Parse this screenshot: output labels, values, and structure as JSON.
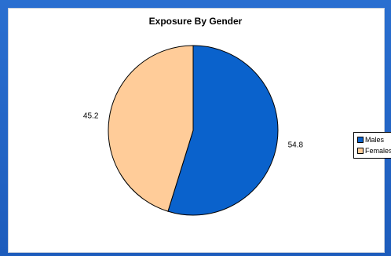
{
  "chart_data": {
    "type": "pie",
    "title": "Exposure By Gender",
    "categories": [
      "Males",
      "Females"
    ],
    "values": [
      54.8,
      45.2
    ],
    "data_labels": [
      "54.8",
      "45.2"
    ],
    "colors": [
      "#0a62cc",
      "#ffcc99"
    ],
    "legend_position": "right"
  }
}
